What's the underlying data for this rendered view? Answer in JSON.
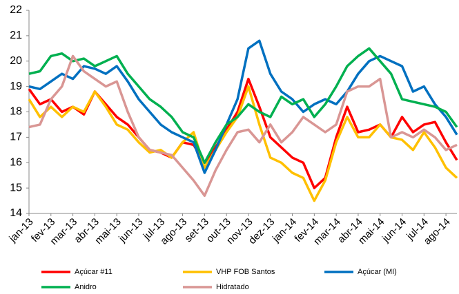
{
  "chart_data": {
    "type": "line",
    "x": [
      0,
      0.5,
      1,
      1.5,
      2,
      2.5,
      3,
      3.5,
      4,
      4.5,
      5,
      5.5,
      6,
      6.5,
      7,
      7.5,
      8,
      8.5,
      9,
      9.5,
      10,
      10.5,
      11,
      11.5,
      12,
      12.5,
      13,
      13.5,
      14,
      14.5,
      15,
      15.5,
      16,
      16.5,
      17,
      17.5,
      18,
      18.5,
      19,
      19.5
    ],
    "xlim": [
      0,
      19.5
    ],
    "xticks": [
      {
        "value": 0,
        "label": "jan-13"
      },
      {
        "value": 1,
        "label": "fev-13"
      },
      {
        "value": 2,
        "label": "mar-13"
      },
      {
        "value": 3,
        "label": "abr-13"
      },
      {
        "value": 4,
        "label": "mai-13"
      },
      {
        "value": 5,
        "label": "jun-13"
      },
      {
        "value": 6,
        "label": "jul-13"
      },
      {
        "value": 7,
        "label": "ago-13"
      },
      {
        "value": 8,
        "label": "set-13"
      },
      {
        "value": 9,
        "label": "out-13"
      },
      {
        "value": 10,
        "label": "nov-13"
      },
      {
        "value": 11,
        "label": "dez-13"
      },
      {
        "value": 12,
        "label": "jan-14"
      },
      {
        "value": 13,
        "label": "fev-14"
      },
      {
        "value": 14,
        "label": "mar-14"
      },
      {
        "value": 15,
        "label": "abr-14"
      },
      {
        "value": 16,
        "label": "mai-14"
      },
      {
        "value": 17,
        "label": "jun-14"
      },
      {
        "value": 18,
        "label": "jul-14"
      },
      {
        "value": 19,
        "label": "ago-14"
      }
    ],
    "ylim": [
      14,
      22
    ],
    "yticks": [
      14,
      15,
      16,
      17,
      18,
      19,
      20,
      21,
      22
    ],
    "grid": false,
    "legend": "bottom",
    "series": [
      {
        "name": "Açúcar #11",
        "color": "#ff0000",
        "values": [
          18.9,
          18.3,
          18.5,
          18.0,
          18.2,
          17.9,
          18.8,
          18.3,
          17.8,
          17.5,
          17.0,
          16.5,
          16.4,
          16.2,
          16.8,
          16.7,
          16.0,
          16.6,
          17.3,
          18.0,
          19.3,
          18.2,
          17.0,
          16.6,
          16.2,
          16.0,
          15.0,
          15.4,
          17.0,
          18.2,
          17.2,
          17.3,
          17.5,
          17.0,
          17.8,
          17.2,
          17.5,
          17.6,
          16.8,
          16.1
        ]
      },
      {
        "name": "VHP FOB Santos",
        "color": "#ffc000",
        "values": [
          18.5,
          17.8,
          18.2,
          17.8,
          18.2,
          18.0,
          18.8,
          18.2,
          17.5,
          17.3,
          16.8,
          16.4,
          16.5,
          16.2,
          16.8,
          17.2,
          15.8,
          16.5,
          17.2,
          17.8,
          19.0,
          17.5,
          16.2,
          16.0,
          15.6,
          15.4,
          14.5,
          15.3,
          16.8,
          17.8,
          17.0,
          17.0,
          17.5,
          17.0,
          16.9,
          16.5,
          17.2,
          16.6,
          15.8,
          15.4
        ]
      },
      {
        "name": "Açúcar (MI)",
        "color": "#0070c0",
        "values": [
          19.0,
          18.9,
          19.2,
          19.5,
          19.3,
          19.8,
          19.7,
          19.5,
          19.8,
          19.2,
          18.5,
          18.0,
          17.5,
          17.2,
          17.0,
          16.8,
          15.6,
          16.5,
          17.5,
          18.5,
          20.5,
          20.8,
          19.5,
          18.8,
          18.5,
          18.0,
          18.3,
          18.5,
          18.3,
          18.8,
          19.5,
          20.0,
          20.2,
          20.0,
          19.8,
          18.8,
          19.0,
          18.3,
          17.8,
          17.1
        ]
      },
      {
        "name": "Anidro",
        "color": "#00b050",
        "values": [
          19.5,
          19.6,
          20.2,
          20.3,
          20.0,
          20.1,
          19.8,
          20.0,
          20.2,
          19.5,
          19.0,
          18.5,
          18.2,
          17.8,
          17.2,
          17.0,
          16.0,
          16.8,
          17.5,
          17.8,
          18.3,
          18.0,
          17.8,
          18.6,
          18.3,
          18.5,
          17.8,
          18.3,
          19.0,
          19.8,
          20.2,
          20.5,
          20.0,
          19.5,
          18.5,
          18.4,
          18.3,
          18.2,
          18.0,
          17.4
        ]
      },
      {
        "name": "Hidratado",
        "color": "#d99694",
        "values": [
          17.4,
          17.5,
          18.5,
          19.0,
          20.2,
          19.6,
          19.3,
          19.0,
          19.2,
          18.0,
          17.0,
          16.5,
          16.4,
          16.3,
          15.8,
          15.3,
          14.7,
          15.7,
          16.5,
          17.2,
          17.3,
          16.8,
          17.5,
          16.8,
          17.2,
          17.8,
          17.5,
          17.2,
          17.5,
          18.8,
          19.0,
          19.0,
          19.3,
          17.0,
          17.2,
          17.0,
          17.3,
          17.0,
          16.5,
          16.7
        ]
      }
    ]
  }
}
